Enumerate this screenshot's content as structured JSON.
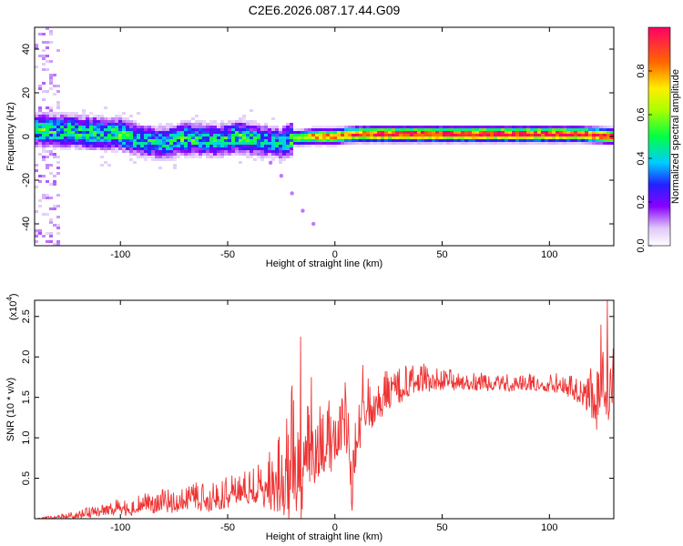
{
  "title": "C2E6.2026.087.17.44.G09",
  "chart_data": [
    {
      "type": "heatmap",
      "xlabel": "Height of straight line (km)",
      "ylabel": "Frequency (Hz)",
      "xlim": [
        -140,
        130
      ],
      "ylim": [
        -50,
        50
      ],
      "xticks": [
        -100,
        -50,
        0,
        50,
        100
      ],
      "yticks": [
        -40,
        -20,
        0,
        20,
        40
      ],
      "ytick_labels": [
        "-40",
        "-20",
        "0",
        "20",
        "40"
      ],
      "colorbar": {
        "label": "Normalized spectral amplitude",
        "range": [
          0,
          1
        ],
        "ticks": [
          "0.0",
          "0.2",
          "0.4",
          "0.6",
          "0.8"
        ],
        "tick_values": [
          0.0,
          0.2,
          0.4,
          0.6,
          0.8
        ]
      },
      "ridge": [
        {
          "x": -135,
          "f": 3,
          "a": 0.45
        },
        {
          "x": -120,
          "f": 2,
          "a": 0.45
        },
        {
          "x": -100,
          "f": 1,
          "a": 0.45
        },
        {
          "x": -90,
          "f": -2,
          "a": 0.4
        },
        {
          "x": -80,
          "f": -3,
          "a": 0.4
        },
        {
          "x": -70,
          "f": -1,
          "a": 0.45
        },
        {
          "x": -55,
          "f": -2,
          "a": 0.4
        },
        {
          "x": -45,
          "f": 0,
          "a": 0.45
        },
        {
          "x": -35,
          "f": -2,
          "a": 0.4
        },
        {
          "x": -25,
          "f": -3,
          "a": 0.35
        },
        {
          "x": -20,
          "f": -1,
          "a": 0.5
        },
        {
          "x": -10,
          "f": 0,
          "a": 0.8
        },
        {
          "x": 0,
          "f": 0,
          "a": 0.85
        },
        {
          "x": 10,
          "f": 1,
          "a": 0.9
        },
        {
          "x": 20,
          "f": 1,
          "a": 0.95
        },
        {
          "x": 40,
          "f": 1,
          "a": 0.98
        },
        {
          "x": 60,
          "f": 1,
          "a": 0.98
        },
        {
          "x": 80,
          "f": 1,
          "a": 0.98
        },
        {
          "x": 100,
          "f": 1,
          "a": 0.98
        },
        {
          "x": 115,
          "f": 1,
          "a": 0.95
        },
        {
          "x": 130,
          "f": 0,
          "a": 0.9
        }
      ],
      "streak": [
        {
          "x": -30,
          "f": -12
        },
        {
          "x": -25,
          "f": -18
        },
        {
          "x": -20,
          "f": -26
        },
        {
          "x": -15,
          "f": -34
        },
        {
          "x": -10,
          "f": -40
        }
      ]
    },
    {
      "type": "line",
      "xlabel": "Height of straight line (km)",
      "ylabel": "SNR (10 * v/v)",
      "scale_label": "(x10",
      "scale_exp": "4",
      "xlim": [
        -140,
        130
      ],
      "ylim": [
        0,
        2.7
      ],
      "xticks": [
        -100,
        -50,
        0,
        50,
        100
      ],
      "yticks": [
        0.5,
        1.0,
        1.5,
        2.0,
        2.5
      ],
      "ytick_labels": [
        "0.5",
        "1.0",
        "1.5",
        "2.0",
        "2.5"
      ],
      "series": [
        {
          "color": "#ee3333",
          "x": [
            -140,
            -130,
            -120,
            -110,
            -100,
            -95,
            -90,
            -85,
            -80,
            -75,
            -70,
            -65,
            -60,
            -55,
            -50,
            -45,
            -40,
            -35,
            -30,
            -25,
            -22,
            -20,
            -18,
            -16,
            -14,
            -12,
            -10,
            -8,
            -6,
            -4,
            -2,
            0,
            2,
            4,
            6,
            8,
            10,
            12,
            14,
            16,
            18,
            20,
            25,
            30,
            35,
            40,
            50,
            60,
            70,
            80,
            90,
            100,
            110,
            115,
            120,
            125,
            130
          ],
          "y": [
            0.0,
            0.02,
            0.05,
            0.1,
            0.15,
            0.12,
            0.2,
            0.18,
            0.22,
            0.2,
            0.25,
            0.28,
            0.26,
            0.3,
            0.35,
            0.32,
            0.4,
            0.45,
            0.5,
            0.55,
            0.6,
            0.9,
            0.7,
            0.5,
            0.8,
            0.9,
            0.95,
            0.85,
            1.0,
            1.05,
            1.0,
            1.1,
            0.95,
            1.2,
            1.3,
            0.4,
            1.0,
            1.2,
            1.35,
            1.4,
            1.45,
            1.5,
            1.6,
            1.65,
            1.7,
            1.75,
            1.72,
            1.7,
            1.7,
            1.68,
            1.7,
            1.68,
            1.65,
            1.6,
            1.55,
            1.6,
            1.75
          ],
          "amp": [
            0.01,
            0.02,
            0.05,
            0.08,
            0.1,
            0.1,
            0.12,
            0.12,
            0.15,
            0.15,
            0.15,
            0.18,
            0.18,
            0.2,
            0.22,
            0.22,
            0.25,
            0.3,
            0.4,
            0.5,
            0.7,
            0.9,
            0.8,
            0.6,
            0.6,
            0.55,
            0.5,
            0.5,
            0.45,
            0.45,
            0.45,
            0.45,
            0.45,
            0.45,
            0.5,
            0.5,
            0.45,
            0.4,
            0.35,
            0.35,
            0.3,
            0.3,
            0.25,
            0.25,
            0.2,
            0.18,
            0.15,
            0.12,
            0.12,
            0.12,
            0.12,
            0.12,
            0.15,
            0.2,
            0.35,
            0.5,
            0.5
          ],
          "peaks": [
            {
              "x": -16,
              "y": 2.25
            },
            {
              "x": -11,
              "y": 1.75
            },
            {
              "x": 8,
              "y": 0.1
            },
            {
              "x": 13,
              "y": 1.9
            },
            {
              "x": 124,
              "y": 2.4
            },
            {
              "x": 127,
              "y": 2.7
            },
            {
              "x": 122,
              "y": 1.1
            }
          ]
        }
      ]
    }
  ]
}
